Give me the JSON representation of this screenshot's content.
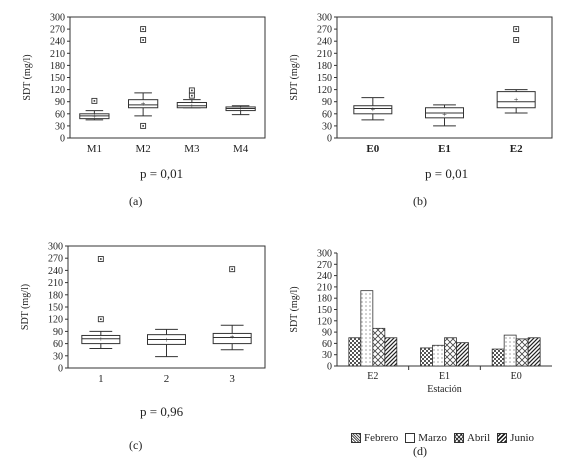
{
  "chart_data": [
    {
      "type": "box",
      "panel_label": "(a)",
      "ylabel": "SDT (mg/l)",
      "ylim": [
        0,
        300
      ],
      "yticks": [
        0,
        30,
        60,
        90,
        120,
        150,
        180,
        210,
        240,
        270,
        300
      ],
      "categories": [
        "M1",
        "M2",
        "M3",
        "M4"
      ],
      "boxes": [
        {
          "category": "M1",
          "whisker_low": 45,
          "q1": 48,
          "median": 55,
          "q3": 60,
          "whisker_high": 68,
          "mean": 55,
          "outliers": [
            92
          ]
        },
        {
          "category": "M2",
          "whisker_low": 55,
          "q1": 75,
          "median": 82,
          "q3": 95,
          "whisker_high": 112,
          "mean": 85,
          "outliers": [
            30,
            243,
            270
          ]
        },
        {
          "category": "M3",
          "whisker_low": 75,
          "q1": 75,
          "median": 80,
          "q3": 88,
          "whisker_high": 95,
          "mean": 80,
          "outliers": [
            105,
            118
          ]
        },
        {
          "category": "M4",
          "whisker_low": 58,
          "q1": 68,
          "median": 73,
          "q3": 77,
          "whisker_high": 80,
          "mean": 73,
          "outliers": []
        }
      ],
      "p_value": "p = 0,01"
    },
    {
      "type": "box",
      "panel_label": "(b)",
      "ylabel": "SDT (mg/l)",
      "ylim": [
        0,
        300
      ],
      "yticks": [
        0,
        30,
        60,
        90,
        120,
        150,
        180,
        210,
        240,
        270,
        300
      ],
      "categories": [
        "E0",
        "E1",
        "E2"
      ],
      "boxes": [
        {
          "category": "E0",
          "whisker_low": 45,
          "q1": 60,
          "median": 73,
          "q3": 80,
          "whisker_high": 100,
          "mean": 72,
          "outliers": []
        },
        {
          "category": "E1",
          "whisker_low": 30,
          "q1": 50,
          "median": 62,
          "q3": 75,
          "whisker_high": 82,
          "mean": 60,
          "outliers": []
        },
        {
          "category": "E2",
          "whisker_low": 62,
          "q1": 75,
          "median": 90,
          "q3": 115,
          "whisker_high": 120,
          "mean": 95,
          "outliers": [
            243,
            270
          ]
        }
      ],
      "p_value": "p = 0,01"
    },
    {
      "type": "box",
      "panel_label": "(c)",
      "ylabel": "SDT (mg/l)",
      "ylim": [
        0,
        300
      ],
      "yticks": [
        0,
        30,
        60,
        90,
        120,
        150,
        180,
        210,
        240,
        270,
        300
      ],
      "categories": [
        "1",
        "2",
        "3"
      ],
      "boxes": [
        {
          "category": "1",
          "whisker_low": 48,
          "q1": 60,
          "median": 72,
          "q3": 80,
          "whisker_high": 90,
          "mean": 72,
          "outliers": [
            120,
            268
          ]
        },
        {
          "category": "2",
          "whisker_low": 28,
          "q1": 58,
          "median": 70,
          "q3": 82,
          "whisker_high": 95,
          "mean": 70,
          "outliers": []
        },
        {
          "category": "3",
          "whisker_low": 45,
          "q1": 60,
          "median": 75,
          "q3": 85,
          "whisker_high": 105,
          "mean": 78,
          "outliers": [
            243
          ]
        }
      ],
      "p_value": "p = 0,96"
    },
    {
      "type": "bar",
      "panel_label": "(d)",
      "ylabel": "SDT (mg/l)",
      "xlabel": "Estación",
      "ylim": [
        0,
        300
      ],
      "yticks": [
        0,
        30,
        60,
        90,
        120,
        150,
        180,
        210,
        240,
        270,
        300
      ],
      "categories": [
        "E2",
        "E1",
        "E0"
      ],
      "series": [
        {
          "name": "Febrero",
          "values": [
            75,
            48,
            45
          ]
        },
        {
          "name": "Marzo",
          "values": [
            200,
            55,
            82
          ]
        },
        {
          "name": "Abril",
          "values": [
            100,
            75,
            72
          ]
        },
        {
          "name": "Junio",
          "values": [
            75,
            62,
            75
          ]
        }
      ]
    }
  ]
}
